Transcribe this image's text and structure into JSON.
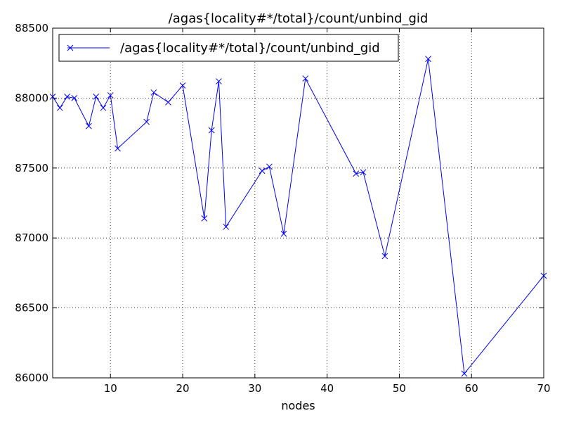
{
  "chart_data": {
    "type": "line",
    "title": "/agas{locality#*/total}/count/unbind_gid",
    "xlabel": "nodes",
    "ylabel": "",
    "xlim": [
      2,
      70
    ],
    "ylim": [
      86000,
      88500
    ],
    "xticks": [
      10,
      20,
      30,
      40,
      50,
      60,
      70
    ],
    "yticks": [
      86000,
      86500,
      87000,
      87500,
      88000,
      88500
    ],
    "grid": true,
    "legend_position": "top-left",
    "series": [
      {
        "name": "/agas{locality#*/total}/count/unbind_gid",
        "color": "#0000ff",
        "marker": "x",
        "x": [
          2,
          3,
          4,
          5,
          7,
          8,
          9,
          10,
          11,
          15,
          16,
          18,
          20,
          23,
          24,
          25,
          26,
          31,
          32,
          34,
          37,
          44,
          45,
          48,
          54,
          59,
          70
        ],
        "y": [
          88010,
          87930,
          88010,
          88000,
          87800,
          88010,
          87930,
          88020,
          87640,
          87830,
          88040,
          87970,
          88090,
          87140,
          87770,
          88120,
          87080,
          87480,
          87510,
          87030,
          88140,
          87460,
          87470,
          86870,
          88280,
          86030,
          86730
        ]
      }
    ]
  }
}
